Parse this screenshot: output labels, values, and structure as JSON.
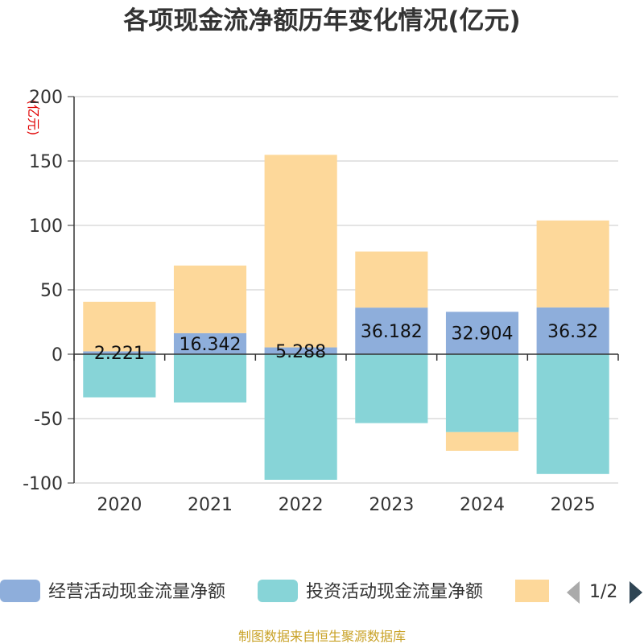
{
  "chart_data": {
    "type": "bar",
    "stacked": true,
    "title": "各项现金流净额历年变化情况(亿元)",
    "unit_label": "(亿元)",
    "categories": [
      "2020",
      "2021",
      "2022",
      "2023",
      "2024",
      "2025"
    ],
    "ylim": [
      -100,
      200
    ],
    "yticks": [
      -100,
      -50,
      0,
      50,
      100,
      150,
      200
    ],
    "series": [
      {
        "name": "经营活动现金流量净额",
        "color": "#8eaedb",
        "values": [
          2.221,
          16.342,
          5.288,
          36.182,
          32.904,
          36.32
        ],
        "labels": [
          "2.221",
          "16.342",
          "5.288",
          "36.182",
          "32.904",
          "36.32"
        ]
      },
      {
        "name": "投资活动现金流量净额",
        "color": "#87d4d7",
        "values": [
          -33.5,
          -37.5,
          -97.5,
          -53.5,
          -60.5,
          -93
        ]
      },
      {
        "name": "",
        "color": "#fdd89a",
        "values": [
          38.5,
          52.5,
          149.5,
          43.5,
          -14.5,
          67.5
        ]
      }
    ]
  },
  "legend": {
    "pager_text": "1/2"
  },
  "source_text": "制图数据来自恒生聚源数据库"
}
